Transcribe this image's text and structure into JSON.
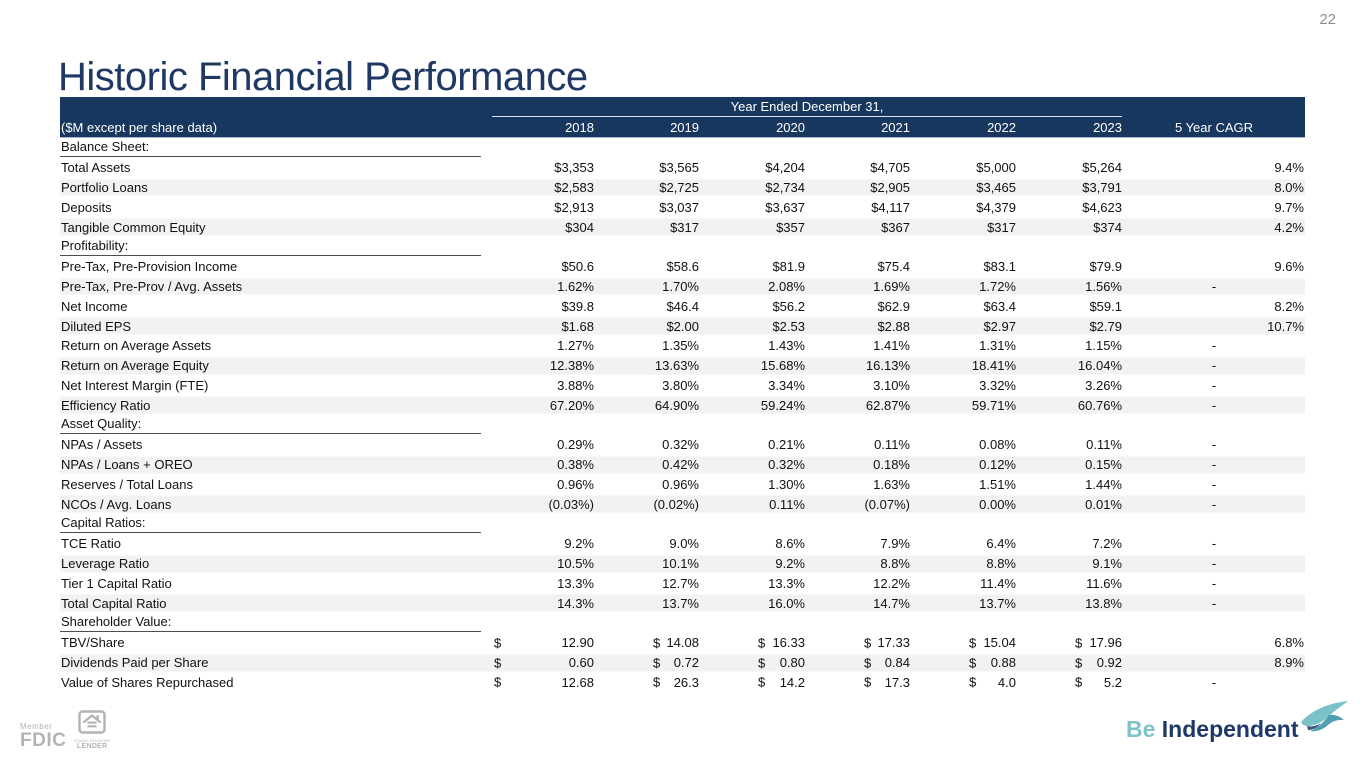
{
  "page_number": "22",
  "title": "Historic Financial Performance",
  "colors": {
    "header_navy": "#17375e",
    "title_navy": "#1f3864",
    "stripe_gray": "#f2f2f2",
    "brand_teal": "#7fc3c8",
    "brand_navy": "#1d3869",
    "logo_gray": "#b3b3b3"
  },
  "table": {
    "header": {
      "units_label": "($M except per share data)",
      "span_label": "Year Ended December 31,",
      "years": [
        "2018",
        "2019",
        "2020",
        "2021",
        "2022",
        "2023"
      ],
      "cagr_label": "5 Year CAGR"
    },
    "sections": [
      {
        "title": "Balance Sheet:",
        "rows": [
          {
            "label": "Total Assets",
            "values": [
              "$3,353",
              "$3,565",
              "$4,204",
              "$4,705",
              "$5,000",
              "$5,264"
            ],
            "cagr": "9.4%"
          },
          {
            "label": "Portfolio Loans",
            "values": [
              "$2,583",
              "$2,725",
              "$2,734",
              "$2,905",
              "$3,465",
              "$3,791"
            ],
            "cagr": "8.0%"
          },
          {
            "label": "Deposits",
            "values": [
              "$2,913",
              "$3,037",
              "$3,637",
              "$4,117",
              "$4,379",
              "$4,623"
            ],
            "cagr": "9.7%"
          },
          {
            "label": "Tangible Common Equity",
            "values": [
              "$304",
              "$317",
              "$357",
              "$367",
              "$317",
              "$374"
            ],
            "cagr": "4.2%"
          }
        ]
      },
      {
        "title": "Profitability:",
        "rows": [
          {
            "label": "Pre-Tax, Pre-Provision Income",
            "values": [
              "$50.6",
              "$58.6",
              "$81.9",
              "$75.4",
              "$83.1",
              "$79.9"
            ],
            "cagr": "9.6%"
          },
          {
            "label": "Pre-Tax, Pre-Prov / Avg. Assets",
            "values": [
              "1.62%",
              "1.70%",
              "2.08%",
              "1.69%",
              "1.72%",
              "1.56%"
            ],
            "cagr": "-"
          },
          {
            "label": "Net Income",
            "values": [
              "$39.8",
              "$46.4",
              "$56.2",
              "$62.9",
              "$63.4",
              "$59.1"
            ],
            "cagr": "8.2%"
          },
          {
            "label": "Diluted EPS",
            "values": [
              "$1.68",
              "$2.00",
              "$2.53",
              "$2.88",
              "$2.97",
              "$2.79"
            ],
            "cagr": "10.7%"
          },
          {
            "label": "Return on Average Assets",
            "values": [
              "1.27%",
              "1.35%",
              "1.43%",
              "1.41%",
              "1.31%",
              "1.15%"
            ],
            "cagr": "-"
          },
          {
            "label": "Return on Average Equity",
            "values": [
              "12.38%",
              "13.63%",
              "15.68%",
              "16.13%",
              "18.41%",
              "16.04%"
            ],
            "cagr": "-"
          },
          {
            "label": "Net Interest Margin (FTE)",
            "values": [
              "3.88%",
              "3.80%",
              "3.34%",
              "3.10%",
              "3.32%",
              "3.26%"
            ],
            "cagr": "-"
          },
          {
            "label": "Efficiency Ratio",
            "values": [
              "67.20%",
              "64.90%",
              "59.24%",
              "62.87%",
              "59.71%",
              "60.76%"
            ],
            "cagr": "-"
          }
        ]
      },
      {
        "title": "Asset Quality:",
        "rows": [
          {
            "label": "NPAs / Assets",
            "values": [
              "0.29%",
              "0.32%",
              "0.21%",
              "0.11%",
              "0.08%",
              "0.11%"
            ],
            "cagr": "-"
          },
          {
            "label": "NPAs / Loans + OREO",
            "values": [
              "0.38%",
              "0.42%",
              "0.32%",
              "0.18%",
              "0.12%",
              "0.15%"
            ],
            "cagr": "-"
          },
          {
            "label": "Reserves / Total Loans",
            "values": [
              "0.96%",
              "0.96%",
              "1.30%",
              "1.63%",
              "1.51%",
              "1.44%"
            ],
            "cagr": "-"
          },
          {
            "label": "NCOs / Avg. Loans",
            "values": [
              "(0.03%)",
              "(0.02%)",
              "0.11%",
              "(0.07%)",
              "0.00%",
              "0.01%"
            ],
            "cagr": "-"
          }
        ]
      },
      {
        "title": "Capital Ratios:",
        "rows": [
          {
            "label": "TCE Ratio",
            "values": [
              "9.2%",
              "9.0%",
              "8.6%",
              "7.9%",
              "6.4%",
              "7.2%"
            ],
            "cagr": "-"
          },
          {
            "label": "Leverage Ratio",
            "values": [
              "10.5%",
              "10.1%",
              "9.2%",
              "8.8%",
              "8.8%",
              "9.1%"
            ],
            "cagr": "-"
          },
          {
            "label": "Tier 1 Capital Ratio",
            "values": [
              "13.3%",
              "12.7%",
              "13.3%",
              "12.2%",
              "11.4%",
              "11.6%"
            ],
            "cagr": "-"
          },
          {
            "label": "Total Capital Ratio",
            "values": [
              "14.3%",
              "13.7%",
              "16.0%",
              "14.7%",
              "13.7%",
              "13.8%"
            ],
            "cagr": "-"
          }
        ]
      },
      {
        "title": "Shareholder Value:",
        "rows": [
          {
            "label": "TBV/Share",
            "money": true,
            "dollar": "$",
            "values": [
              "12.90",
              "14.08",
              "16.33",
              "17.33",
              "15.04",
              "17.96"
            ],
            "cagr": "6.8%"
          },
          {
            "label": "Dividends Paid per Share",
            "money": true,
            "dollar": "$",
            "values": [
              "0.60",
              "0.72",
              "0.80",
              "0.84",
              "0.88",
              "0.92"
            ],
            "cagr": "8.9%"
          },
          {
            "label": "Value of Shares Repurchased",
            "money": true,
            "dollar": "$",
            "values": [
              "12.68",
              "26.3",
              "14.2",
              "17.3",
              "4.0",
              "5.2"
            ],
            "cagr": "-"
          }
        ]
      }
    ]
  },
  "footer": {
    "fdic": {
      "member": "Member",
      "fdic": "FDIC"
    },
    "equal_housing": {
      "top": "EQUAL HOUSING",
      "bottom": "LENDER"
    },
    "brand": {
      "be": "Be ",
      "independent": "Independent"
    }
  }
}
